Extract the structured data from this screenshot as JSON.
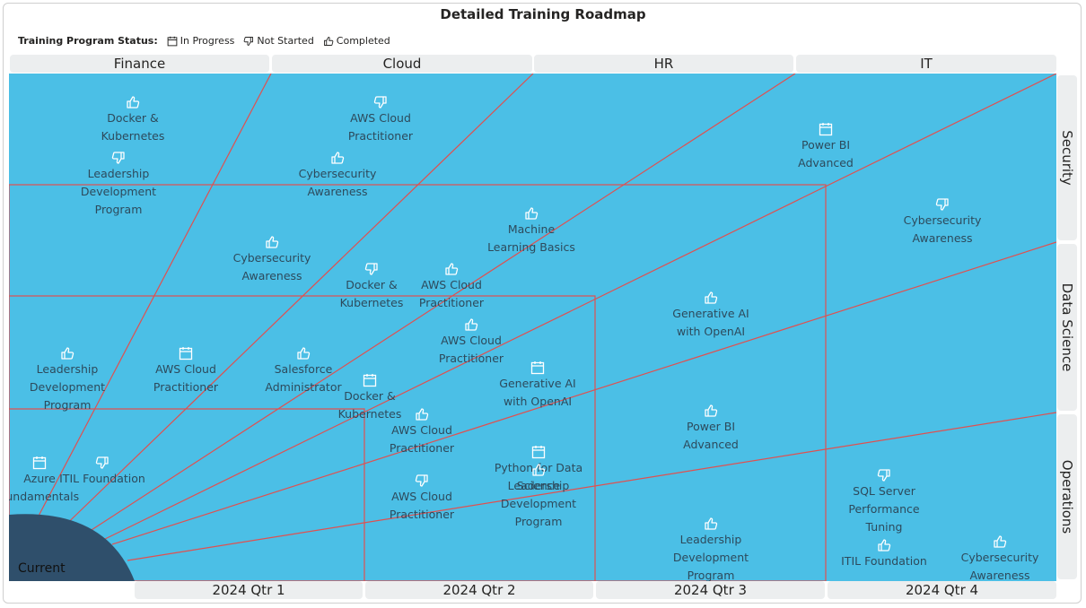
{
  "title": "Detailed Training Roadmap",
  "legend": {
    "label": "Training Program Status:",
    "in_progress": "In Progress",
    "not_started": "Not Started",
    "completed": "Completed"
  },
  "columns": [
    "Finance",
    "Cloud",
    "HR",
    "IT"
  ],
  "rows": [
    "Security",
    "Data Science",
    "Operations"
  ],
  "quarters": [
    "2024 Qtr 1",
    "2024 Qtr 2",
    "2024 Qtr 3",
    "2024 Qtr 4"
  ],
  "current_label": "Current",
  "colors": {
    "background": "#4bbfe6",
    "lines": "#e05050",
    "current": "#2f4f6b",
    "text": "#2d4a5c"
  },
  "items": [
    {
      "lines": [
        "Docker &",
        "Kubernetes"
      ],
      "status": "completed"
    },
    {
      "lines": [
        "Leadership",
        "Development",
        "Program"
      ],
      "status": "not_started"
    },
    {
      "lines": [
        "AWS Cloud",
        "Practitioner"
      ],
      "status": "not_started"
    },
    {
      "lines": [
        "Cybersecurity",
        "Awareness"
      ],
      "status": "completed"
    },
    {
      "lines": [
        "Power BI",
        "Advanced"
      ],
      "status": "in_progress"
    },
    {
      "lines": [
        "Machine",
        "Learning Basics"
      ],
      "status": "completed"
    },
    {
      "lines": [
        "Cybersecurity",
        "Awareness"
      ],
      "status": "not_started"
    },
    {
      "lines": [
        "Cybersecurity",
        "Awareness"
      ],
      "status": "completed"
    },
    {
      "lines": [
        "Docker &",
        "Kubernetes"
      ],
      "status": "not_started"
    },
    {
      "lines": [
        "AWS Cloud",
        "Practitioner"
      ],
      "status": "completed"
    },
    {
      "lines": [
        "Generative AI",
        "with OpenAI"
      ],
      "status": "completed"
    },
    {
      "lines": [
        "AWS Cloud",
        "Practitioner"
      ],
      "status": "completed"
    },
    {
      "lines": [
        "Leadership",
        "Development",
        "Program"
      ],
      "status": "completed"
    },
    {
      "lines": [
        "AWS Cloud",
        "Practitioner"
      ],
      "status": "in_progress"
    },
    {
      "lines": [
        "Salesforce",
        "Administrator"
      ],
      "status": "completed"
    },
    {
      "lines": [
        "Docker &",
        "Kubernetes"
      ],
      "status": "in_progress"
    },
    {
      "lines": [
        "Generative AI",
        "with OpenAI"
      ],
      "status": "in_progress"
    },
    {
      "lines": [
        "AWS Cloud",
        "Practitioner"
      ],
      "status": "completed"
    },
    {
      "lines": [
        "Python for Data",
        "Science"
      ],
      "status": "in_progress"
    },
    {
      "lines": [
        "Power BI",
        "Advanced"
      ],
      "status": "completed"
    },
    {
      "lines": [
        "Azure",
        "Fundamentals"
      ],
      "status": "in_progress"
    },
    {
      "lines": [
        "ITIL Foundation"
      ],
      "status": "not_started"
    },
    {
      "lines": [
        "Leadership",
        "Development",
        "Program"
      ],
      "status": "completed"
    },
    {
      "lines": [
        "AWS Cloud",
        "Practitioner"
      ],
      "status": "not_started"
    },
    {
      "lines": [
        "SQL Server",
        "Performance",
        "Tuning"
      ],
      "status": "not_started"
    },
    {
      "lines": [
        "Leadership",
        "Development",
        "Program"
      ],
      "status": "completed"
    },
    {
      "lines": [
        "ITIL Foundation"
      ],
      "status": "completed"
    },
    {
      "lines": [
        "Cybersecurity",
        "Awareness"
      ],
      "status": "completed"
    }
  ]
}
